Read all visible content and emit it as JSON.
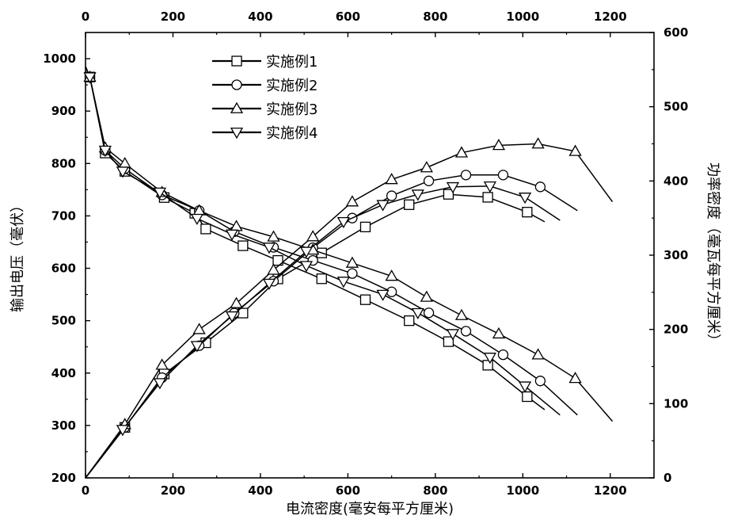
{
  "chart_data": {
    "type": "line",
    "xlabel": "电流密度(毫安每平方厘米)",
    "ylabel_left": "输出电压（毫伏）",
    "ylabel_right": "功率密度（毫瓦每平方厘米）",
    "x_bottom_range": [
      0,
      1300
    ],
    "x_top_range": [
      0,
      1300
    ],
    "y_left_range": [
      200,
      1050
    ],
    "y_right_range": [
      0,
      600
    ],
    "x_ticks": [
      0,
      200,
      400,
      600,
      800,
      1000,
      1200
    ],
    "y_left_ticks": [
      200,
      300,
      400,
      500,
      600,
      700,
      800,
      900,
      1000
    ],
    "y_right_ticks": [
      0,
      100,
      200,
      300,
      400,
      500,
      600
    ],
    "legend_placement": "top-left",
    "series": [
      {
        "name": "实施例1",
        "marker": "square",
        "voltage": [
          [
            0,
            985
          ],
          [
            10,
            965
          ],
          [
            45,
            820
          ],
          [
            90,
            785
          ],
          [
            180,
            735
          ],
          [
            250,
            705
          ],
          [
            275,
            675
          ],
          [
            360,
            643
          ],
          [
            440,
            615
          ],
          [
            540,
            580
          ],
          [
            640,
            540
          ],
          [
            740,
            500
          ],
          [
            830,
            460
          ],
          [
            920,
            415
          ],
          [
            1010,
            355
          ],
          [
            1050,
            330
          ]
        ],
        "power": [
          [
            0,
            0
          ],
          [
            90,
            68
          ],
          [
            180,
            140
          ],
          [
            275,
            182
          ],
          [
            360,
            222
          ],
          [
            440,
            268
          ],
          [
            540,
            303
          ],
          [
            640,
            338
          ],
          [
            740,
            368
          ],
          [
            830,
            382
          ],
          [
            920,
            378
          ],
          [
            1010,
            358
          ],
          [
            1050,
            345
          ]
        ]
      },
      {
        "name": "实施例2",
        "marker": "circle",
        "voltage": [
          [
            0,
            985
          ],
          [
            10,
            965
          ],
          [
            45,
            825
          ],
          [
            90,
            790
          ],
          [
            175,
            740
          ],
          [
            260,
            710
          ],
          [
            340,
            670
          ],
          [
            430,
            640
          ],
          [
            520,
            615
          ],
          [
            610,
            590
          ],
          [
            700,
            555
          ],
          [
            785,
            515
          ],
          [
            870,
            480
          ],
          [
            955,
            435
          ],
          [
            1040,
            385
          ],
          [
            1125,
            320
          ]
        ],
        "power": [
          [
            0,
            0
          ],
          [
            90,
            68
          ],
          [
            175,
            135
          ],
          [
            260,
            178
          ],
          [
            340,
            222
          ],
          [
            430,
            265
          ],
          [
            520,
            310
          ],
          [
            610,
            350
          ],
          [
            700,
            380
          ],
          [
            785,
            400
          ],
          [
            870,
            408
          ],
          [
            955,
            408
          ],
          [
            1040,
            392
          ],
          [
            1125,
            360
          ]
        ]
      },
      {
        "name": "实施例3",
        "marker": "triangle-up",
        "voltage": [
          [
            0,
            985
          ],
          [
            10,
            965
          ],
          [
            45,
            830
          ],
          [
            90,
            800
          ],
          [
            175,
            745
          ],
          [
            260,
            710
          ],
          [
            345,
            680
          ],
          [
            430,
            660
          ],
          [
            520,
            635
          ],
          [
            610,
            610
          ],
          [
            700,
            585
          ],
          [
            780,
            545
          ],
          [
            860,
            510
          ],
          [
            945,
            475
          ],
          [
            1035,
            435
          ],
          [
            1120,
            390
          ],
          [
            1205,
            308
          ]
        ],
        "power": [
          [
            0,
            0
          ],
          [
            90,
            72
          ],
          [
            175,
            152
          ],
          [
            260,
            200
          ],
          [
            345,
            235
          ],
          [
            430,
            280
          ],
          [
            520,
            325
          ],
          [
            610,
            372
          ],
          [
            700,
            402
          ],
          [
            780,
            418
          ],
          [
            860,
            438
          ],
          [
            945,
            448
          ],
          [
            1035,
            450
          ],
          [
            1120,
            440
          ],
          [
            1205,
            372
          ]
        ]
      },
      {
        "name": "实施例4",
        "marker": "triangle-down",
        "voltage": [
          [
            0,
            985
          ],
          [
            10,
            965
          ],
          [
            45,
            825
          ],
          [
            85,
            785
          ],
          [
            170,
            745
          ],
          [
            255,
            695
          ],
          [
            335,
            665
          ],
          [
            420,
            640
          ],
          [
            505,
            605
          ],
          [
            590,
            575
          ],
          [
            680,
            550
          ],
          [
            760,
            515
          ],
          [
            840,
            475
          ],
          [
            925,
            430
          ],
          [
            1005,
            375
          ],
          [
            1085,
            320
          ]
        ],
        "power": [
          [
            0,
            0
          ],
          [
            85,
            65
          ],
          [
            170,
            128
          ],
          [
            255,
            178
          ],
          [
            335,
            218
          ],
          [
            420,
            262
          ],
          [
            505,
            305
          ],
          [
            590,
            345
          ],
          [
            680,
            368
          ],
          [
            760,
            382
          ],
          [
            840,
            392
          ],
          [
            925,
            393
          ],
          [
            1005,
            378
          ],
          [
            1085,
            347
          ]
        ]
      }
    ]
  }
}
